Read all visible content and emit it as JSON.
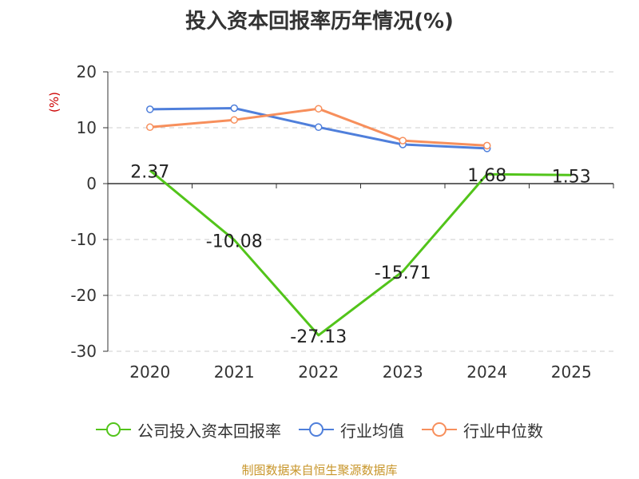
{
  "chart_data": {
    "type": "line",
    "title": "投入资本回报率历年情况(%)",
    "ylabel": "(%)",
    "xlabel": "",
    "categories": [
      "2020",
      "2021",
      "2022",
      "2023",
      "2024",
      "2025"
    ],
    "ylim": [
      -30,
      20
    ],
    "yticks": [
      20,
      10,
      0,
      -10,
      -20,
      -30
    ],
    "grid": true,
    "legend_position": "bottom",
    "series": [
      {
        "name": "公司投入资本回报率",
        "color": "#52c41a",
        "values": [
          2.37,
          -10.08,
          -27.13,
          -15.71,
          1.68,
          1.53
        ],
        "labels": [
          "2.37",
          "-10.08",
          "-27.13",
          "-15.71",
          "1.68",
          "1.53"
        ],
        "show_labels": true,
        "show_markers": false
      },
      {
        "name": "行业均值",
        "color": "#4f7fdb",
        "values": [
          13.3,
          13.5,
          10.1,
          7.0,
          6.3,
          null
        ],
        "show_labels": false,
        "show_markers": true
      },
      {
        "name": "行业中位数",
        "color": "#f78f5c",
        "values": [
          10.1,
          11.4,
          13.4,
          7.7,
          6.8,
          null
        ],
        "show_labels": false,
        "show_markers": true
      }
    ]
  },
  "footer": {
    "source": "制图数据来自恒生聚源数据库"
  }
}
